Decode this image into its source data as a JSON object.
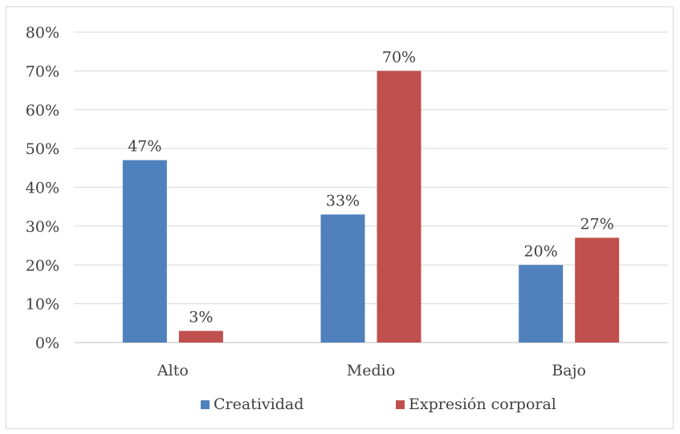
{
  "chart_data": {
    "type": "bar",
    "title": "",
    "xlabel": "",
    "ylabel": "",
    "categories": [
      "Alto",
      "Medio",
      "Bajo"
    ],
    "series": [
      {
        "name": "Creatividad",
        "color": "#4f81bd",
        "values": [
          47,
          33,
          20
        ],
        "labels": [
          "47%",
          "33%",
          "20%"
        ]
      },
      {
        "name": "Expresión corporal",
        "color": "#c0504d",
        "values": [
          3,
          70,
          27
        ],
        "labels": [
          "3%",
          "70%",
          "27%"
        ]
      }
    ],
    "ylim": [
      0,
      80
    ],
    "yticks": [
      "0%",
      "10%",
      "20%",
      "30%",
      "40%",
      "50%",
      "60%",
      "70%",
      "80%"
    ],
    "grid": true,
    "legend_position": "bottom"
  }
}
